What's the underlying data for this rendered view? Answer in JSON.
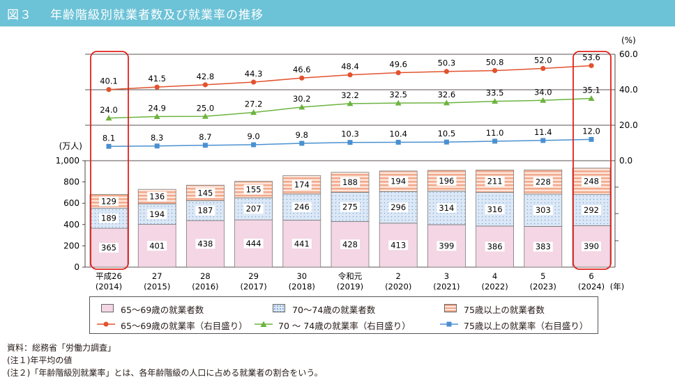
{
  "title": {
    "figure_no": "図３",
    "text": "年齢階級別就業者数及び就業率の推移"
  },
  "chart_data": {
    "type": "bar+line",
    "categories": [
      "平成26\n(2014)",
      "27\n(2015)",
      "28\n(2016)",
      "29\n(2017)",
      "30\n(2018)",
      "令和元\n(2019)",
      "2\n(2020)",
      "3\n(2021)",
      "4\n(2022)",
      "5\n(2023)",
      "6\n(2024)"
    ],
    "x_unit": "(年)",
    "bars": {
      "stacked": true,
      "y_unit": "(万人)",
      "ylim": [
        0,
        1000
      ],
      "yticks": [
        "0",
        "200",
        "400",
        "600",
        "800",
        "1,000"
      ],
      "series": [
        {
          "name": "65〜69歳の就業者数",
          "color": "#f4d6e4",
          "values": [
            365,
            401,
            438,
            444,
            441,
            428,
            413,
            399,
            386,
            383,
            390
          ]
        },
        {
          "name": "70〜74歳の就業者数",
          "color": "#dce8f6",
          "values": [
            189,
            194,
            187,
            207,
            246,
            275,
            296,
            314,
            316,
            303,
            292
          ]
        },
        {
          "name": "75歳以上の就業者数",
          "color": "#f1a98c",
          "values": [
            129,
            136,
            145,
            155,
            174,
            188,
            194,
            196,
            211,
            228,
            248
          ]
        }
      ]
    },
    "lines": {
      "y_unit": "(%)",
      "ylim": [
        0,
        60
      ],
      "yticks": [
        "0.0",
        "20.0",
        "40.0",
        "60.0"
      ],
      "series": [
        {
          "name": "65〜69歳の就業率（右目盛り）",
          "color": "#e2522e",
          "marker": "circle",
          "values": [
            40.1,
            41.5,
            42.8,
            44.3,
            46.6,
            48.4,
            49.6,
            50.3,
            50.8,
            52.0,
            53.6
          ]
        },
        {
          "name": "70 〜 74歳の就業率（右目盛り）",
          "color": "#6cb33f",
          "marker": "triangle",
          "values": [
            24.0,
            24.9,
            25.0,
            27.2,
            30.2,
            32.2,
            32.5,
            32.6,
            33.5,
            34.0,
            35.1
          ]
        },
        {
          "name": "75歳以上の就業率（右目盛り）",
          "color": "#4a90d0",
          "marker": "square",
          "values": [
            8.1,
            8.3,
            8.7,
            9.0,
            9.8,
            10.3,
            10.4,
            10.5,
            11.0,
            11.4,
            12.0
          ]
        }
      ]
    },
    "highlighted_categories": [
      0,
      10
    ]
  },
  "notes": [
    "資料：総務省「労働力調査」",
    "(注１)年平均の値",
    "(注２)「年齢階級別就業率」とは、各年齢階級の人口に占める就業者の割合をいう。"
  ]
}
